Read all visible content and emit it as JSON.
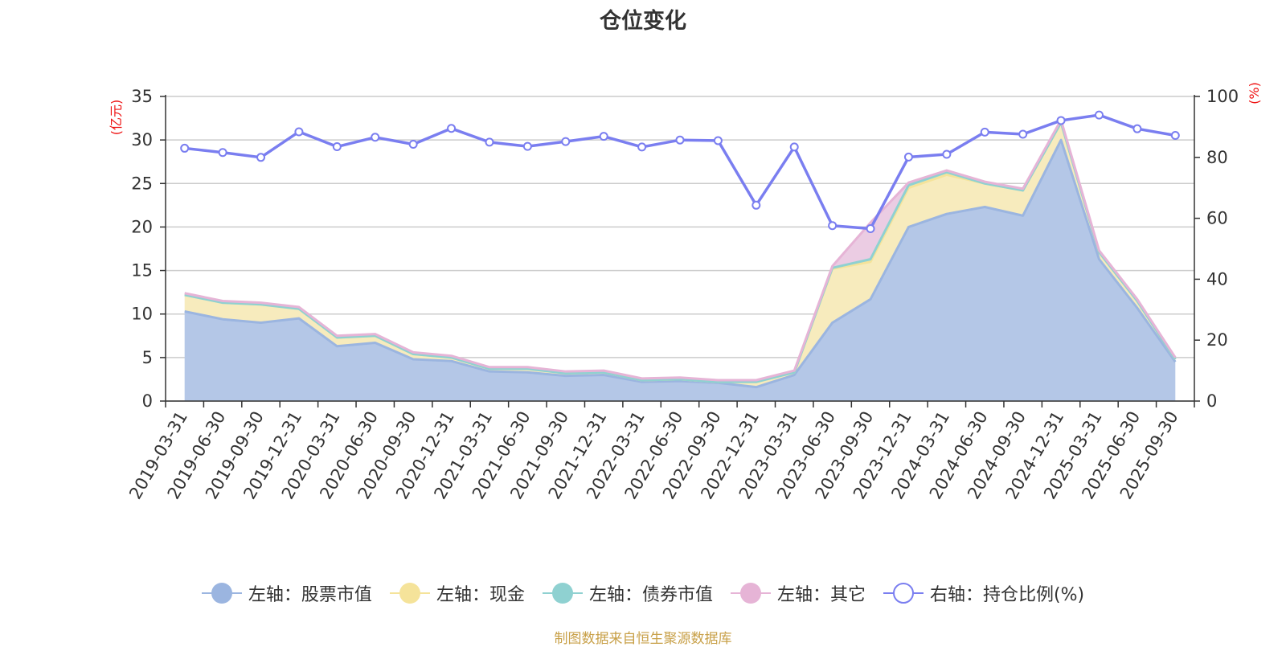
{
  "chart_data": {
    "type": "area",
    "title": "仓位变化",
    "categories": [
      "2019-03-31",
      "2019-06-30",
      "2019-09-30",
      "2019-12-31",
      "2020-03-31",
      "2020-06-30",
      "2020-09-30",
      "2020-12-31",
      "2021-03-31",
      "2021-06-30",
      "2021-09-30",
      "2021-12-31",
      "2022-03-31",
      "2022-06-30",
      "2022-09-30",
      "2022-12-31",
      "2023-03-31",
      "2023-06-30",
      "2023-09-30",
      "2023-12-31",
      "2024-03-31",
      "2024-06-30",
      "2024-09-30",
      "2024-12-31",
      "2025-03-31",
      "2025-06-30",
      "2025-09-30"
    ],
    "left_axis": {
      "unit": "(亿元)",
      "ylim": [
        0,
        35
      ],
      "ticks": [
        0,
        5,
        10,
        15,
        20,
        25,
        30,
        35
      ]
    },
    "right_axis": {
      "unit": "(%)",
      "ylim": [
        0,
        100
      ],
      "ticks": [
        0,
        20,
        40,
        60,
        80,
        100
      ]
    },
    "series": [
      {
        "name": "左轴：股票市值",
        "axis": "left",
        "stack": "total",
        "color": "#9bb5e0",
        "fill": "#b4c7e7",
        "values": [
          10.3,
          9.4,
          9.0,
          9.5,
          6.3,
          6.7,
          4.8,
          4.6,
          3.4,
          3.3,
          2.9,
          3.0,
          2.2,
          2.3,
          2.1,
          1.6,
          3.0,
          9.0,
          11.7,
          20.0,
          21.5,
          22.3,
          21.3,
          30.0,
          16.3,
          10.7,
          4.5
        ]
      },
      {
        "name": "左轴：现金",
        "axis": "left",
        "stack": "total",
        "color": "#f5e39a",
        "fill": "#f7ebbd",
        "values": [
          1.9,
          1.9,
          2.1,
          1.1,
          1.0,
          0.8,
          0.6,
          0.4,
          0.3,
          0.4,
          0.3,
          0.3,
          0.2,
          0.2,
          0.1,
          0.6,
          0.3,
          6.2,
          4.3,
          4.5,
          4.5,
          2.7,
          2.9,
          2.0,
          0.8,
          0.8,
          0.3
        ]
      },
      {
        "name": "左轴：债券市值",
        "axis": "left",
        "stack": "total",
        "color": "#8fd1d1",
        "fill": "#b2e0e0",
        "values": [
          0,
          0,
          0,
          0,
          0,
          0,
          0,
          0,
          0,
          0,
          0,
          0,
          0,
          0,
          0,
          0,
          0,
          0.1,
          0.3,
          0.3,
          0.3,
          0,
          0,
          0,
          0,
          0,
          0
        ]
      },
      {
        "name": "左轴：其它",
        "axis": "left",
        "stack": "total",
        "color": "#e6b4d6",
        "fill": "#ebcce3",
        "values": [
          0.2,
          0.2,
          0.2,
          0.2,
          0.2,
          0.2,
          0.2,
          0.2,
          0.2,
          0.2,
          0.2,
          0.2,
          0.2,
          0.2,
          0.2,
          0.2,
          0.2,
          0.2,
          4.2,
          0.3,
          0.2,
          0.2,
          0.2,
          0.3,
          0.2,
          0.2,
          0.2
        ]
      },
      {
        "name": "右轴：持仓比例(%)",
        "axis": "right",
        "type": "line",
        "color": "#7a7ef0",
        "values": [
          83.0,
          81.6,
          80.0,
          88.4,
          83.5,
          86.6,
          84.3,
          89.5,
          85.0,
          83.6,
          85.2,
          86.9,
          83.4,
          85.7,
          85.5,
          64.3,
          83.4,
          57.6,
          56.6,
          80.1,
          81.0,
          88.3,
          87.6,
          92.1,
          93.9,
          89.4,
          87.2
        ]
      }
    ],
    "grid": true,
    "legend_position": "bottom"
  },
  "source_note": "制图数据来自恒生聚源数据库"
}
